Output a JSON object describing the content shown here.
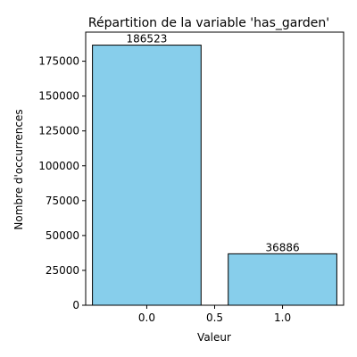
{
  "chart_data": {
    "type": "bar",
    "title": "Répartition de la variable 'has_garden'",
    "xlabel": "Valeur",
    "ylabel": "Nombre d'occurrences",
    "x": [
      0.0,
      1.0
    ],
    "values": [
      186523,
      36886
    ],
    "data_labels": [
      "186523",
      "36886"
    ],
    "bar_width": 0.8,
    "xlim": [
      -0.45,
      1.45
    ],
    "ylim": [
      0,
      195849
    ],
    "xticks": [
      0.0,
      0.5,
      1.0
    ],
    "xtick_labels": [
      "0.0",
      "0.5",
      "1.0"
    ],
    "yticks": [
      0,
      25000,
      50000,
      75000,
      100000,
      125000,
      150000,
      175000
    ],
    "ytick_labels": [
      "0",
      "25000",
      "50000",
      "75000",
      "100000",
      "125000",
      "150000",
      "175000"
    ],
    "grid": false,
    "legend": false,
    "bar_color": "#87ceeb",
    "bar_edge_color": "#000000"
  }
}
